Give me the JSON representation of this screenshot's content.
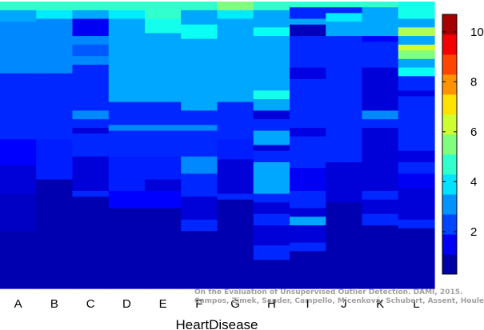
{
  "chart_data": {
    "type": "heatmap",
    "title": "",
    "xlabel": "HeartDisease",
    "ylabel": "",
    "columns": [
      "A",
      "B",
      "C",
      "D",
      "E",
      "F",
      "G",
      "H",
      "I",
      "J",
      "K",
      "L"
    ],
    "colorbar": {
      "range": [
        0.3,
        10.7
      ],
      "ticks": [
        2,
        4,
        6,
        8,
        10
      ],
      "colormap": "jet"
    },
    "column_segments": [
      [
        [
          0,
          0.03,
          4.7
        ],
        [
          0.03,
          0.07,
          3.3
        ],
        [
          0.07,
          0.25,
          3.0
        ],
        [
          0.25,
          0.48,
          2.0
        ],
        [
          0.48,
          0.57,
          1.6
        ],
        [
          0.57,
          0.67,
          1.2
        ],
        [
          0.67,
          0.8,
          1.0
        ],
        [
          0.8,
          1,
          0.8
        ]
      ],
      [
        [
          0,
          0.03,
          4.7
        ],
        [
          0.03,
          0.06,
          4.0
        ],
        [
          0.06,
          0.25,
          3.0
        ],
        [
          0.25,
          0.48,
          2.0
        ],
        [
          0.48,
          0.62,
          1.9
        ],
        [
          0.62,
          1,
          0.8
        ]
      ],
      [
        [
          0,
          0.03,
          4.7
        ],
        [
          0.03,
          0.06,
          3.3
        ],
        [
          0.06,
          0.12,
          1.5
        ],
        [
          0.12,
          0.15,
          3.0
        ],
        [
          0.15,
          0.19,
          2.5
        ],
        [
          0.19,
          0.22,
          3.0
        ],
        [
          0.22,
          0.38,
          2.0
        ],
        [
          0.38,
          0.41,
          3.0
        ],
        [
          0.41,
          0.44,
          2.0
        ],
        [
          0.44,
          0.46,
          1.2
        ],
        [
          0.46,
          0.54,
          2.0
        ],
        [
          0.54,
          0.66,
          1.2
        ],
        [
          0.66,
          0.68,
          2.0
        ],
        [
          0.68,
          1,
          0.8
        ]
      ],
      [
        [
          0,
          0.03,
          4.7
        ],
        [
          0.03,
          0.06,
          4.0
        ],
        [
          0.06,
          0.35,
          3.3
        ],
        [
          0.35,
          0.43,
          2.0
        ],
        [
          0.43,
          0.45,
          3.0
        ],
        [
          0.45,
          0.54,
          2.0
        ],
        [
          0.54,
          0.66,
          1.9
        ],
        [
          0.66,
          0.72,
          1.6
        ],
        [
          0.72,
          1,
          0.8
        ]
      ],
      [
        [
          0,
          0.06,
          4.7
        ],
        [
          0.06,
          0.11,
          4.4
        ],
        [
          0.11,
          0.35,
          3.3
        ],
        [
          0.35,
          0.43,
          2.0
        ],
        [
          0.43,
          0.45,
          3.0
        ],
        [
          0.45,
          0.54,
          2.0
        ],
        [
          0.54,
          0.62,
          1.9
        ],
        [
          0.62,
          0.66,
          1.2
        ],
        [
          0.66,
          0.72,
          1.6
        ],
        [
          0.72,
          1,
          0.8
        ]
      ],
      [
        [
          0,
          0.03,
          4.7
        ],
        [
          0.03,
          0.08,
          3.3
        ],
        [
          0.08,
          0.13,
          4.3
        ],
        [
          0.13,
          0.38,
          3.3
        ],
        [
          0.38,
          0.43,
          2.0
        ],
        [
          0.43,
          0.45,
          3.0
        ],
        [
          0.45,
          0.54,
          2.0
        ],
        [
          0.54,
          0.6,
          3.0
        ],
        [
          0.6,
          0.68,
          2.0
        ],
        [
          0.68,
          0.76,
          1.2
        ],
        [
          0.76,
          0.8,
          2.0
        ],
        [
          0.8,
          1,
          0.8
        ]
      ],
      [
        [
          0,
          0.03,
          5.5
        ],
        [
          0.03,
          0.06,
          4.0
        ],
        [
          0.06,
          0.35,
          3.3
        ],
        [
          0.35,
          0.48,
          2.0
        ],
        [
          0.48,
          0.55,
          1.9
        ],
        [
          0.55,
          0.67,
          1.2
        ],
        [
          0.67,
          0.69,
          2.0
        ],
        [
          0.69,
          1,
          0.8
        ]
      ],
      [
        [
          0,
          0.03,
          4.7
        ],
        [
          0.03,
          0.09,
          3.3
        ],
        [
          0.09,
          0.12,
          4.3
        ],
        [
          0.12,
          0.31,
          3.3
        ],
        [
          0.31,
          0.34,
          4.4
        ],
        [
          0.34,
          0.38,
          3.3
        ],
        [
          0.38,
          0.41,
          1.2
        ],
        [
          0.41,
          0.45,
          2.0
        ],
        [
          0.45,
          0.5,
          3.3
        ],
        [
          0.5,
          0.52,
          1.2
        ],
        [
          0.52,
          0.56,
          2.0
        ],
        [
          0.56,
          0.67,
          3.3
        ],
        [
          0.67,
          0.7,
          2.0
        ],
        [
          0.7,
          0.74,
          1.2
        ],
        [
          0.74,
          0.78,
          2.0
        ],
        [
          0.78,
          0.85,
          1.2
        ],
        [
          0.85,
          0.9,
          2.0
        ],
        [
          0.9,
          1,
          0.8
        ]
      ],
      [
        [
          0,
          0.02,
          4.7
        ],
        [
          0.02,
          0.06,
          2.0
        ],
        [
          0.06,
          0.08,
          3.3
        ],
        [
          0.08,
          0.12,
          0.9
        ],
        [
          0.12,
          0.23,
          2.0
        ],
        [
          0.23,
          0.27,
          1.3
        ],
        [
          0.27,
          0.44,
          2.0
        ],
        [
          0.44,
          0.47,
          1.3
        ],
        [
          0.47,
          0.58,
          2.0
        ],
        [
          0.58,
          0.66,
          1.5
        ],
        [
          0.66,
          0.72,
          2.0
        ],
        [
          0.72,
          0.75,
          1.2
        ],
        [
          0.75,
          0.78,
          3.3
        ],
        [
          0.78,
          0.84,
          1.2
        ],
        [
          0.84,
          0.87,
          2.0
        ],
        [
          0.87,
          1,
          0.8
        ]
      ],
      [
        [
          0,
          0.02,
          4.7
        ],
        [
          0.02,
          0.04,
          2.0
        ],
        [
          0.04,
          0.07,
          4.0
        ],
        [
          0.07,
          0.12,
          3.3
        ],
        [
          0.12,
          0.17,
          2.0
        ],
        [
          0.17,
          0.47,
          2.0
        ],
        [
          0.47,
          0.56,
          2.0
        ],
        [
          0.56,
          0.7,
          1.2
        ],
        [
          0.7,
          1,
          0.8
        ]
      ],
      [
        [
          0,
          0.02,
          4.7
        ],
        [
          0.02,
          0.06,
          3.3
        ],
        [
          0.06,
          0.12,
          3.3
        ],
        [
          0.12,
          0.14,
          1.6
        ],
        [
          0.14,
          0.23,
          2.0
        ],
        [
          0.23,
          0.28,
          1.2
        ],
        [
          0.28,
          0.38,
          1.2
        ],
        [
          0.38,
          0.41,
          3.0
        ],
        [
          0.41,
          0.44,
          2.0
        ],
        [
          0.44,
          0.46,
          1.2
        ],
        [
          0.46,
          0.54,
          1.2
        ],
        [
          0.54,
          0.66,
          1.2
        ],
        [
          0.66,
          0.69,
          2.0
        ],
        [
          0.69,
          0.74,
          1.2
        ],
        [
          0.74,
          0.78,
          2.0
        ],
        [
          0.78,
          1,
          0.8
        ]
      ],
      [
        [
          0,
          0.06,
          4.4
        ],
        [
          0.06,
          0.09,
          3.3
        ],
        [
          0.09,
          0.12,
          6.0
        ],
        [
          0.12,
          0.15,
          3.3
        ],
        [
          0.15,
          0.17,
          6.3
        ],
        [
          0.17,
          0.2,
          5.5
        ],
        [
          0.2,
          0.23,
          3.3
        ],
        [
          0.23,
          0.26,
          4.3
        ],
        [
          0.26,
          0.31,
          2.0
        ],
        [
          0.31,
          0.33,
          1.3
        ],
        [
          0.33,
          0.48,
          2.0
        ],
        [
          0.48,
          0.52,
          2.0
        ],
        [
          0.52,
          0.56,
          1.3
        ],
        [
          0.56,
          0.6,
          2.0
        ],
        [
          0.6,
          0.65,
          1.5
        ],
        [
          0.65,
          0.76,
          1.2
        ],
        [
          0.76,
          0.79,
          2.0
        ],
        [
          0.79,
          1,
          0.8
        ]
      ]
    ]
  },
  "credit": {
    "line1": "On the Evaluation of Unsupervised Outlier Detection. DAMI, 2015.",
    "line2": "Campos, Zimek, Sander, Campello, Micenková, Schubert, Assent, Houle"
  }
}
